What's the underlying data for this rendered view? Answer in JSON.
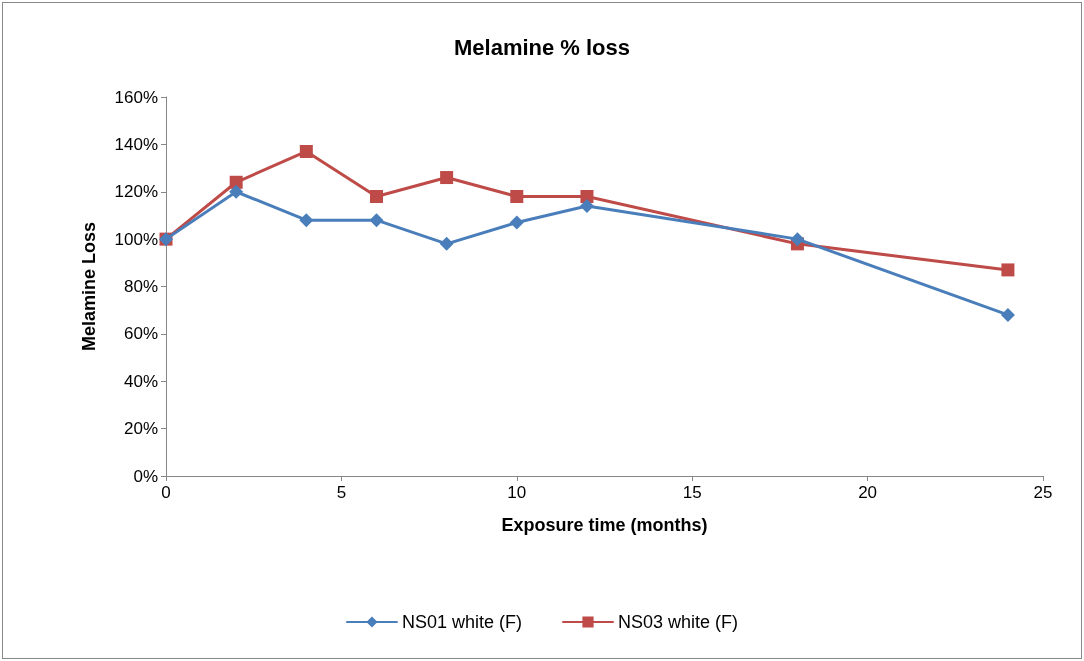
{
  "chart_data": {
    "type": "line",
    "title": "Melamine % loss",
    "xlabel": "Exposure time (months)",
    "ylabel": "Melamine Loss",
    "x": [
      0,
      2,
      4,
      6,
      8,
      10,
      12,
      18,
      24
    ],
    "series": [
      {
        "name": "NS01 white (F)",
        "color": "#4a7ebb",
        "marker": "diamond",
        "values": [
          100,
          120,
          108,
          108,
          98,
          107,
          114,
          100,
          68
        ]
      },
      {
        "name": "NS03 white (F)",
        "color": "#be4b48",
        "marker": "square",
        "values": [
          100,
          124,
          137,
          118,
          126,
          118,
          118,
          98,
          87
        ]
      }
    ],
    "xlim": [
      0,
      25
    ],
    "xticks": [
      0,
      5,
      10,
      15,
      20,
      25
    ],
    "ylim": [
      0,
      160
    ],
    "yticks": [
      {
        "value": 0,
        "label": "0%"
      },
      {
        "value": 20,
        "label": "20%"
      },
      {
        "value": 40,
        "label": "40%"
      },
      {
        "value": 60,
        "label": "60%"
      },
      {
        "value": 80,
        "label": "80%"
      },
      {
        "value": 100,
        "label": "100%"
      },
      {
        "value": 120,
        "label": "120%"
      },
      {
        "value": 140,
        "label": "140%"
      },
      {
        "value": 160,
        "label": "160%"
      }
    ],
    "grid": false,
    "legend": "bottom",
    "line_style": "solid"
  }
}
